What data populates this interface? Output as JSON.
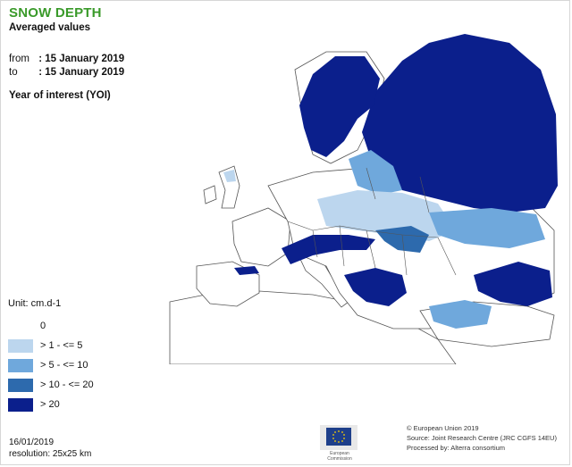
{
  "header": {
    "title": "SNOW DEPTH",
    "subtitle": "Averaged values",
    "from_label": "from",
    "from_value": ": 15 January 2019",
    "to_label": "to",
    "to_value": ": 15 January 2019",
    "yoi": "Year of interest (YOI)"
  },
  "legend": {
    "unit": "Unit: cm.d-1",
    "items": [
      {
        "label": "0",
        "color": "#ffffff"
      },
      {
        "label": "> 1 - <= 5",
        "color": "#bcd6ee"
      },
      {
        "label": "> 5 - <= 10",
        "color": "#6fa8dc"
      },
      {
        "label": "> 10 - <= 20",
        "color": "#2d6aad"
      },
      {
        "label": "> 20",
        "color": "#0b1f8c"
      }
    ]
  },
  "footer": {
    "date": "16/01/2019",
    "resolution": "resolution: 25x25 km",
    "copyright": "© European Union 2019",
    "source": "Source: Joint Research Centre (JRC CGFS 14EU)",
    "processed": "Processed by: Alterra consortium",
    "logo_text": "European Commission"
  },
  "map": {
    "region": "Europe",
    "colors": {
      "land": "#ffffff",
      "border": "#555555",
      "light": "#bcd6ee",
      "medium": "#6fa8dc",
      "mid_dark": "#2d6aad",
      "dark": "#0b1f8c"
    }
  }
}
